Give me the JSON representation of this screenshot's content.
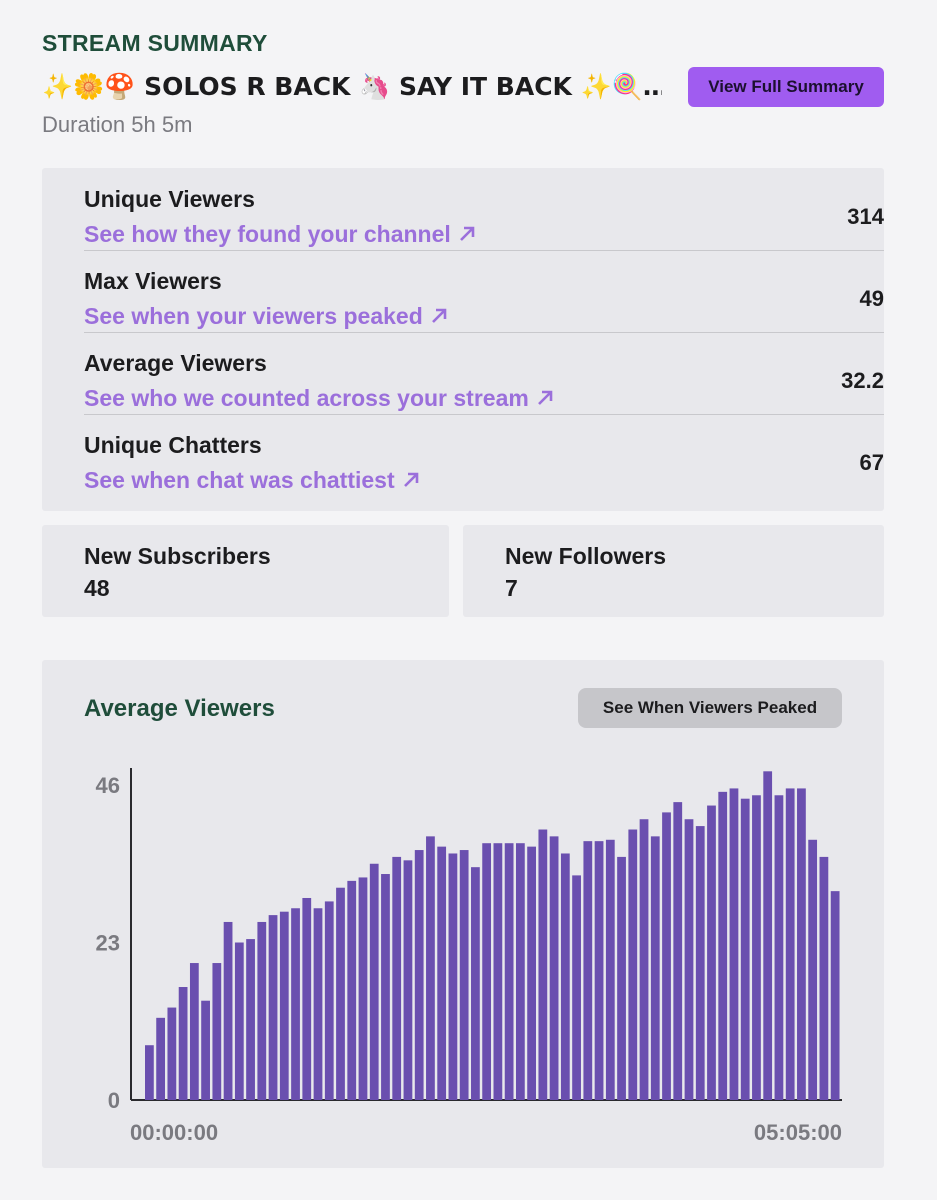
{
  "header": {
    "section_label": "STREAM SUMMARY",
    "stream_title": "✨🌼🍄 SOLOS R BACK 🦄 SAY IT BACK ✨🍭…",
    "duration": "Duration 5h 5m",
    "full_summary_button": "View Full Summary"
  },
  "stats": [
    {
      "name": "Unique Viewers",
      "link": "See how they found your channel",
      "value": "314"
    },
    {
      "name": "Max Viewers",
      "link": "See when your viewers peaked",
      "value": "49"
    },
    {
      "name": "Average Viewers",
      "link": "See who we counted across your stream",
      "value": "32.2"
    },
    {
      "name": "Unique Chatters",
      "link": "See when chat was chattiest",
      "value": "67"
    }
  ],
  "subscribers": {
    "label": "New Subscribers",
    "value": "48"
  },
  "followers": {
    "label": "New Followers",
    "value": "7"
  },
  "chart_panel": {
    "title": "Average Viewers",
    "peak_button": "See When Viewers Peaked"
  },
  "colors": {
    "accent": "#a05cf0",
    "bar": "#6a4faf",
    "link": "#9b6fdb",
    "heading": "#1f4d3a"
  },
  "chart_data": {
    "type": "bar",
    "title": "Average Viewers",
    "y_ticks": [
      "0",
      "23",
      "46"
    ],
    "ylim": [
      0,
      46
    ],
    "x_tick_labels": [
      "00:00:00",
      "05:05:00"
    ],
    "grid": false,
    "values": [
      8,
      12,
      13.5,
      16.5,
      20,
      14.5,
      20,
      26,
      23,
      23.5,
      26,
      27,
      27.5,
      28,
      29.5,
      28,
      29,
      31,
      32,
      32.5,
      34.5,
      33,
      35.5,
      35,
      36.5,
      38.5,
      37,
      36,
      36.5,
      34,
      37.5,
      37.5,
      37.5,
      37.5,
      37,
      39.5,
      38.5,
      36,
      32.8,
      37.8,
      37.8,
      38,
      35.5,
      39.5,
      41,
      38.5,
      42,
      43.5,
      41,
      40,
      43,
      45,
      45.5,
      44,
      44.5,
      48,
      44.5,
      45.5,
      45.5,
      38,
      35.5,
      30.5
    ]
  }
}
